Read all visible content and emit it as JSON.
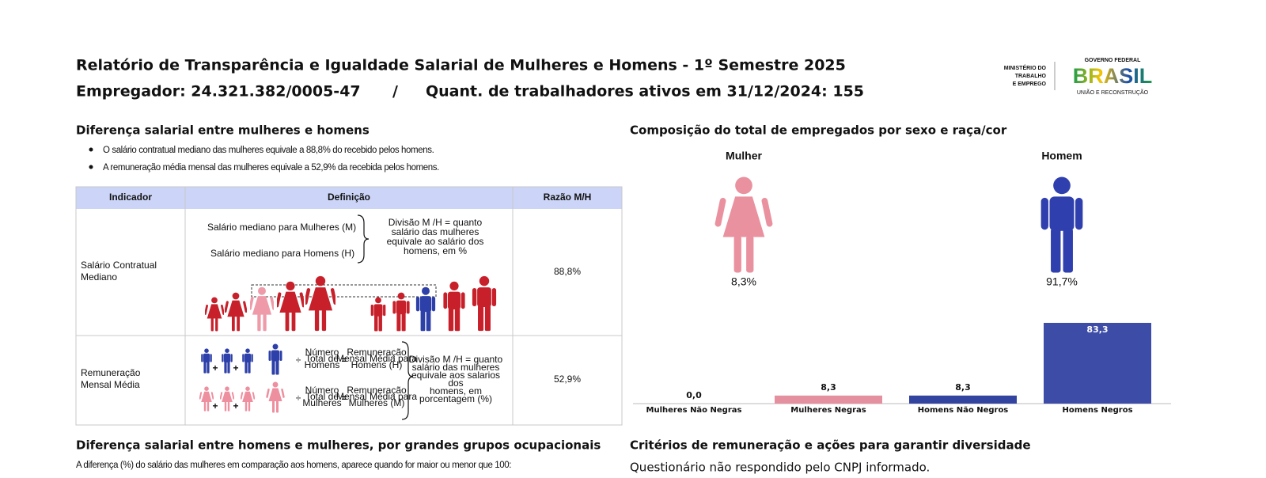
{
  "header": {
    "title": "Relatório de Transparência e Igualdade Salarial de Mulheres e Homens - 1º Semestre 2025",
    "employer": "Empregador: 24.321.382/0005-47",
    "separator": "/",
    "workers": "Quant. de trabalhadores ativos em 31/12/2024: 155"
  },
  "logos": {
    "ministry": [
      "MINISTÉRIO DO",
      "TRABALHO",
      "E EMPREGO"
    ],
    "government": "GOVERNO FEDERAL",
    "brand": "BRASIL",
    "slogan": "UNIÃO E RECONSTRUÇÃO"
  },
  "salary_gap": {
    "title": "Diferença salarial entre mulheres e homens",
    "bullets": [
      "O salário contratual mediano das mulheres equivale a 88,8% do recebido pelos homens.",
      "A remuneração média mensal das mulheres equivale a 52,9% da recebida pelos homens."
    ],
    "table": {
      "headers": [
        "Indicador",
        "Definição",
        "Razão M/H"
      ],
      "rows": [
        {
          "indicator": [
            "Salário Contratual",
            "Mediano"
          ],
          "definition": {
            "women": "Salário mediano para Mulheres (M)",
            "men": "Salário mediano para Homens (H)",
            "note": [
              "Divisão M /H = quanto",
              "salário das mulheres",
              "equivale ao salário dos",
              "homens, em %"
            ]
          },
          "ratio": "88,8%"
        },
        {
          "indicator": [
            "Remuneração",
            "Mensal Média"
          ],
          "definition": {
            "plus": "+",
            "divide": "÷",
            "equals": "=",
            "count_men": [
              "Número",
              "Total de",
              "Homens"
            ],
            "avg_men": [
              "Remuneração",
              "Mensal Média para",
              "Homens (H)"
            ],
            "count_women": [
              "Número",
              "Total de",
              "Mulheres"
            ],
            "avg_women": [
              "Remuneração",
              "Mensal Média para",
              "Mulheres (M)"
            ],
            "note": [
              "Divisão M /H = quanto",
              "salário das mulheres",
              "equivale aos salarios",
              "dos",
              "homens, em",
              "porcentagem (%)"
            ]
          },
          "ratio": "52,9%"
        }
      ]
    }
  },
  "composition": {
    "title": "Composição do total de empregados por sexo e raça/cor",
    "women": {
      "label": "Mulher",
      "share": "8,3%"
    },
    "men": {
      "label": "Homem",
      "share": "91,7%"
    }
  },
  "chart_data": {
    "type": "bar",
    "categories": [
      "Mulheres Não Negras",
      "Mulheres Negras",
      "Homens Não Negros",
      "Homens Negros"
    ],
    "values": [
      0.0,
      8.3,
      8.3,
      83.3
    ],
    "value_labels": [
      "0,0",
      "8,3",
      "8,3",
      "83,3"
    ],
    "colors": [
      "#e4909e",
      "#e4909e",
      "#3343a0",
      "#3d4ca6"
    ]
  },
  "occupational": {
    "title": "Diferença salarial entre homens e mulheres, por grandes grupos ocupacionais",
    "text": "A diferença (%) do salário das mulheres em comparação aos homens, aparece quando for maior ou menor que 100:"
  },
  "criteria": {
    "title": "Critérios de remuneração e ações para garantir diversidade",
    "text": "Questionário não respondido pelo CNPJ informado."
  }
}
